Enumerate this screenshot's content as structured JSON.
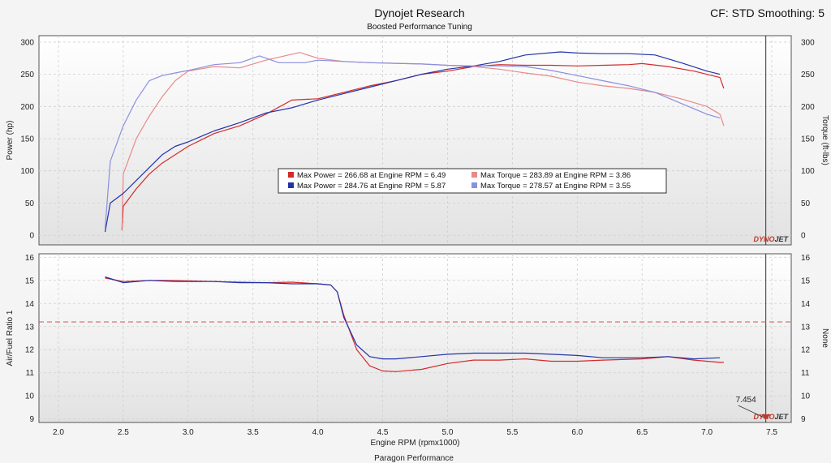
{
  "header": {
    "title": "Dynojet Research",
    "subtitle": "Boosted Performance Tuning",
    "settings": "CF: STD Smoothing: 5"
  },
  "footer": "Paragon Performance",
  "brand": {
    "part1": "DYNO",
    "part2": "JET"
  },
  "colors": {
    "run1_power": "#d42a2a",
    "run1_torque": "#e88a8a",
    "run2_power": "#2233aa",
    "run2_torque": "#8a8fe0",
    "afr_target": "#d9534f"
  },
  "chart_data": [
    {
      "type": "line",
      "x_label": "Engine RPM (rpmx1000)",
      "y_label": "Power (hp)",
      "y2_label": "Torque (ft-lbs)",
      "xlim": [
        1.85,
        7.65
      ],
      "ylim": [
        -15,
        310
      ],
      "x_ticks": [
        2.0,
        2.5,
        3.0,
        3.5,
        4.0,
        4.5,
        5.0,
        5.5,
        6.0,
        6.5,
        7.0,
        7.5
      ],
      "y_ticks": [
        0,
        50,
        100,
        150,
        200,
        250,
        300
      ],
      "grid": true,
      "legend": [
        {
          "color": "#d42a2a",
          "label": "Max Power = 266.68 at Engine RPM = 6.49"
        },
        {
          "color": "#e88a8a",
          "label": "Max Torque = 283.89 at Engine RPM = 3.86"
        },
        {
          "color": "#2233aa",
          "label": "Max Power = 284.76 at Engine RPM = 5.87"
        },
        {
          "color": "#8a8fe0",
          "label": "Max Torque = 278.57 at Engine RPM = 3.55"
        }
      ],
      "cursor_rpm": 7.454,
      "series": [
        {
          "color": "#d42a2a",
          "x": [
            2.49,
            2.5,
            2.6,
            2.7,
            2.8,
            2.9,
            3.0,
            3.2,
            3.4,
            3.6,
            3.8,
            4.0,
            4.2,
            4.4,
            4.6,
            4.8,
            5.0,
            5.2,
            5.4,
            5.6,
            5.8,
            6.0,
            6.2,
            6.4,
            6.5,
            6.7,
            6.9,
            7.1,
            7.13
          ],
          "y": [
            8,
            45,
            72,
            95,
            112,
            125,
            138,
            158,
            170,
            188,
            210,
            212,
            222,
            232,
            240,
            250,
            255,
            262,
            265,
            264,
            264,
            263,
            264,
            265,
            266.7,
            262,
            255,
            245,
            228
          ]
        },
        {
          "color": "#e88a8a",
          "x": [
            2.49,
            2.5,
            2.6,
            2.7,
            2.8,
            2.9,
            3.0,
            3.2,
            3.4,
            3.6,
            3.86,
            4.0,
            4.2,
            4.4,
            4.6,
            4.8,
            5.0,
            5.2,
            5.4,
            5.6,
            5.8,
            6.0,
            6.2,
            6.4,
            6.6,
            6.8,
            7.0,
            7.1,
            7.13
          ],
          "y": [
            10,
            95,
            150,
            185,
            215,
            240,
            255,
            262,
            260,
            272,
            283.9,
            275,
            270,
            268,
            267,
            266,
            264,
            262,
            258,
            252,
            247,
            238,
            232,
            228,
            222,
            212,
            200,
            188,
            170
          ]
        },
        {
          "color": "#2233aa",
          "x": [
            2.36,
            2.4,
            2.5,
            2.6,
            2.7,
            2.8,
            2.9,
            3.0,
            3.2,
            3.4,
            3.6,
            3.8,
            4.0,
            4.2,
            4.4,
            4.6,
            4.8,
            5.0,
            5.2,
            5.4,
            5.6,
            5.87,
            6.0,
            6.2,
            6.4,
            6.6,
            6.8,
            7.0,
            7.1
          ],
          "y": [
            5,
            50,
            65,
            85,
            105,
            125,
            138,
            145,
            162,
            175,
            190,
            198,
            210,
            220,
            230,
            240,
            250,
            258,
            263,
            270,
            280,
            284.8,
            283,
            282,
            282,
            280,
            268,
            255,
            250
          ]
        },
        {
          "color": "#8a8fe0",
          "x": [
            2.36,
            2.4,
            2.5,
            2.6,
            2.7,
            2.8,
            2.9,
            3.0,
            3.2,
            3.4,
            3.55,
            3.7,
            3.9,
            4.0,
            4.2,
            4.4,
            4.6,
            4.8,
            5.0,
            5.2,
            5.4,
            5.6,
            5.8,
            6.0,
            6.2,
            6.4,
            6.6,
            6.8,
            7.0,
            7.1
          ],
          "y": [
            10,
            115,
            170,
            210,
            240,
            248,
            252,
            256,
            265,
            268,
            278.6,
            268,
            268,
            272,
            270,
            268,
            267,
            266,
            264,
            263,
            263,
            262,
            256,
            248,
            240,
            232,
            222,
            205,
            188,
            182
          ]
        }
      ]
    },
    {
      "type": "line",
      "x_label": "Engine RPM (rpmx1000)",
      "y_label": "Air/Fuel Ratio 1",
      "y2_label": "None",
      "xlim": [
        1.85,
        7.65
      ],
      "ylim": [
        8.85,
        16.15
      ],
      "x_ticks": [
        2.0,
        2.5,
        3.0,
        3.5,
        4.0,
        4.5,
        5.0,
        5.5,
        6.0,
        6.5,
        7.0,
        7.5
      ],
      "y_ticks": [
        9,
        10,
        11,
        12,
        13,
        14,
        15,
        16
      ],
      "grid": true,
      "target_afr": 13.2,
      "cursor_value": "7.454",
      "series": [
        {
          "color": "#d42a2a",
          "x": [
            2.36,
            2.5,
            2.7,
            2.9,
            3.0,
            3.2,
            3.4,
            3.6,
            3.8,
            4.0,
            4.1,
            4.15,
            4.2,
            4.3,
            4.4,
            4.5,
            4.6,
            4.8,
            5.0,
            5.2,
            5.4,
            5.6,
            5.8,
            6.0,
            6.2,
            6.5,
            6.7,
            6.9,
            7.1,
            7.13
          ],
          "y": [
            15.1,
            14.95,
            15.0,
            15.0,
            14.98,
            14.95,
            14.92,
            14.9,
            14.92,
            14.85,
            14.8,
            14.5,
            13.5,
            12.0,
            11.3,
            11.08,
            11.05,
            11.15,
            11.4,
            11.55,
            11.55,
            11.6,
            11.5,
            11.5,
            11.55,
            11.6,
            11.7,
            11.55,
            11.45,
            11.45
          ]
        },
        {
          "color": "#2233aa",
          "x": [
            2.36,
            2.5,
            2.7,
            2.9,
            3.0,
            3.2,
            3.4,
            3.6,
            3.8,
            4.0,
            4.1,
            4.15,
            4.2,
            4.3,
            4.4,
            4.5,
            4.6,
            4.8,
            5.0,
            5.2,
            5.4,
            5.6,
            5.8,
            6.0,
            6.2,
            6.5,
            6.7,
            6.9,
            7.1
          ],
          "y": [
            15.15,
            14.9,
            15.0,
            14.95,
            14.95,
            14.95,
            14.9,
            14.9,
            14.85,
            14.85,
            14.8,
            14.5,
            13.4,
            12.2,
            11.7,
            11.6,
            11.6,
            11.7,
            11.8,
            11.85,
            11.85,
            11.85,
            11.8,
            11.75,
            11.65,
            11.65,
            11.7,
            11.6,
            11.65
          ]
        }
      ]
    }
  ]
}
